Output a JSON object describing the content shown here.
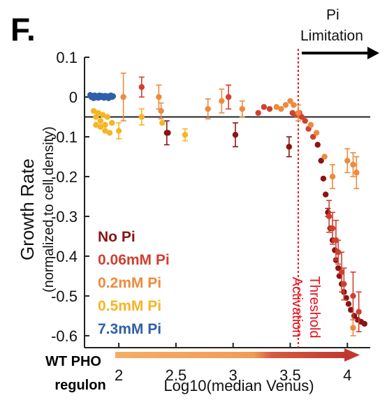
{
  "panel_label": "F.",
  "annotation": {
    "line1": "Pi",
    "line2": "Limitation"
  },
  "regulon_label": {
    "line1": "WT PHO",
    "line2": "regulon"
  },
  "colors": {
    "no_pi": "#8b1414",
    "pi_006": "#d04030",
    "pi_02": "#ee8a3c",
    "pi_05": "#f5b523",
    "pi_73": "#2e5fa8",
    "threshold": "#e8121f",
    "arrow_light": "#f4a35c",
    "arrow_dark": "#cc4a3a"
  },
  "chart_data": {
    "type": "scatter",
    "title": "",
    "xlabel": "Log10(median Venus)",
    "ylabel": "Growth Rate",
    "ylabel_sub": "(normalized to cell density)",
    "xlim": [
      1.7,
      4.2
    ],
    "ylim": [
      -0.63,
      0.1
    ],
    "xticks": [
      2,
      2.5,
      3,
      3.5,
      4
    ],
    "yticks": [
      0.1,
      0,
      -0.1,
      -0.2,
      -0.3,
      -0.4,
      -0.5,
      -0.6
    ],
    "hline": -0.05,
    "threshold_x": 3.57,
    "threshold_label": {
      "line1": "Activation",
      "line2": "Threshold"
    },
    "legend": {
      "position": "lower-left",
      "items": [
        "No Pi",
        "0.06mM Pi",
        "0.2mM Pi",
        "0.5mM Pi",
        "7.3mM Pi"
      ]
    },
    "series": [
      {
        "name": "No Pi",
        "color": "#8b1414",
        "points": [
          [
            2.42,
            -0.09,
            0.03
          ],
          [
            2.43,
            -0.09,
            0
          ],
          [
            3.02,
            -0.095,
            0.03
          ],
          [
            3.49,
            -0.125,
            0.025
          ],
          [
            3.74,
            -0.12,
            0
          ],
          [
            3.77,
            -0.16,
            0
          ],
          [
            3.79,
            -0.205,
            0
          ],
          [
            3.81,
            -0.245,
            0
          ],
          [
            3.83,
            -0.29,
            0.01
          ],
          [
            3.85,
            -0.33,
            0
          ],
          [
            3.87,
            -0.36,
            0
          ],
          [
            3.89,
            -0.385,
            0
          ],
          [
            3.9,
            -0.41,
            0
          ],
          [
            3.92,
            -0.43,
            0
          ],
          [
            3.93,
            -0.45,
            0
          ],
          [
            3.95,
            -0.47,
            0
          ],
          [
            3.97,
            -0.49,
            0
          ],
          [
            3.99,
            -0.505,
            0
          ],
          [
            4.01,
            -0.52,
            0
          ],
          [
            4.03,
            -0.535,
            0
          ],
          [
            4.06,
            -0.55,
            0
          ],
          [
            4.09,
            -0.56,
            0
          ],
          [
            4.12,
            -0.565,
            0
          ],
          [
            4.15,
            -0.57,
            0
          ]
        ]
      },
      {
        "name": "0.06mM Pi",
        "color": "#d04030",
        "points": [
          [
            2.2,
            0.025,
            0.025
          ],
          [
            2.96,
            0.0,
            0.03
          ],
          [
            3.22,
            -0.04,
            0
          ],
          [
            3.27,
            -0.025,
            0
          ],
          [
            3.32,
            -0.03,
            0
          ],
          [
            3.52,
            -0.04,
            0
          ],
          [
            3.55,
            -0.045,
            0
          ],
          [
            3.58,
            -0.04,
            0
          ],
          [
            3.6,
            -0.05,
            0
          ],
          [
            3.63,
            -0.06,
            0
          ],
          [
            3.66,
            -0.08,
            0
          ],
          [
            3.7,
            -0.1,
            0
          ],
          [
            3.84,
            -0.3,
            0.04
          ],
          [
            3.87,
            -0.33,
            0.04
          ],
          [
            3.9,
            -0.36,
            0.05
          ],
          [
            3.92,
            -0.39,
            0.03
          ],
          [
            3.95,
            -0.44,
            0.05
          ],
          [
            3.97,
            -0.47,
            0.04
          ],
          [
            4.05,
            -0.5,
            0.06
          ],
          [
            4.1,
            -0.54,
            0.05
          ]
        ]
      },
      {
        "name": "0.2mM Pi",
        "color": "#ee8a3c",
        "points": [
          [
            2.04,
            0.0,
            0.06
          ],
          [
            2.35,
            0.0,
            0.03
          ],
          [
            2.37,
            -0.035,
            0.02
          ],
          [
            2.78,
            -0.03,
            0.025
          ],
          [
            2.9,
            -0.01,
            0.03
          ],
          [
            3.08,
            -0.03,
            0.02
          ],
          [
            3.38,
            -0.025,
            0
          ],
          [
            3.42,
            -0.03,
            0
          ],
          [
            3.46,
            -0.02,
            0
          ],
          [
            3.5,
            -0.01,
            0
          ],
          [
            3.53,
            -0.02,
            0
          ],
          [
            3.57,
            -0.04,
            0.02
          ],
          [
            3.68,
            -0.07,
            0
          ],
          [
            3.73,
            -0.09,
            0
          ],
          [
            3.8,
            -0.15,
            0
          ],
          [
            3.87,
            -0.2,
            0.03
          ],
          [
            4.0,
            -0.16,
            0.03
          ],
          [
            4.05,
            -0.17,
            0.03
          ],
          [
            4.08,
            -0.19,
            0.04
          ],
          [
            4.05,
            -0.58,
            0.02
          ]
        ]
      },
      {
        "name": "0.5mM Pi",
        "color": "#f5b523",
        "points": [
          [
            1.78,
            -0.035,
            0
          ],
          [
            1.8,
            -0.05,
            0
          ],
          [
            1.82,
            -0.04,
            0
          ],
          [
            1.84,
            -0.06,
            0
          ],
          [
            1.86,
            -0.045,
            0
          ],
          [
            1.88,
            -0.07,
            0
          ],
          [
            1.9,
            -0.05,
            0
          ],
          [
            1.8,
            -0.07,
            0
          ],
          [
            1.84,
            -0.075,
            0
          ],
          [
            1.88,
            -0.085,
            0
          ],
          [
            1.92,
            -0.09,
            0
          ],
          [
            1.94,
            -0.065,
            0
          ],
          [
            2.0,
            -0.085,
            0.02
          ],
          [
            2.2,
            -0.05,
            0.02
          ],
          [
            2.38,
            -0.065,
            0
          ],
          [
            2.58,
            -0.095,
            0.015
          ]
        ]
      },
      {
        "name": "7.3mM Pi",
        "color": "#2e5fa8",
        "points": [
          [
            1.75,
            0.005,
            0
          ],
          [
            1.76,
            0.0,
            0
          ],
          [
            1.77,
            0.003,
            0
          ],
          [
            1.78,
            -0.003,
            0
          ],
          [
            1.79,
            0.004,
            0
          ],
          [
            1.8,
            0.0,
            0
          ],
          [
            1.81,
            0.002,
            0
          ],
          [
            1.82,
            -0.002,
            0
          ],
          [
            1.83,
            0.004,
            0
          ],
          [
            1.84,
            0.0,
            0
          ],
          [
            1.85,
            0.003,
            0
          ],
          [
            1.86,
            0.001,
            0
          ],
          [
            1.87,
            -0.002,
            0
          ],
          [
            1.88,
            0.003,
            0
          ],
          [
            1.89,
            0.0,
            0
          ],
          [
            1.9,
            0.002,
            0
          ],
          [
            1.91,
            -0.003,
            0
          ],
          [
            1.92,
            0.001,
            0
          ],
          [
            1.93,
            0.004,
            0
          ],
          [
            1.94,
            0.0,
            0
          ],
          [
            1.95,
            0.002,
            0
          ]
        ]
      }
    ]
  }
}
